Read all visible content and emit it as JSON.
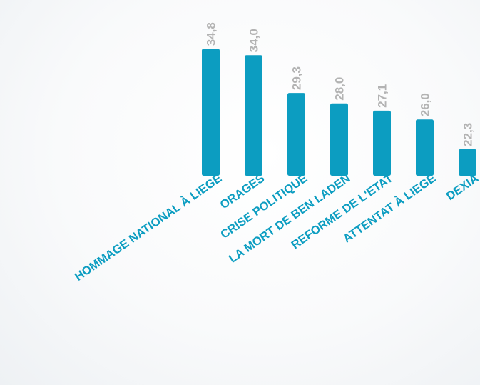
{
  "chart_data": {
    "type": "bar",
    "categories": [
      "HOMMAGE NATIONAL À LIEGE",
      "ORAGES",
      "CRISE POLITIQUE",
      "LA MORT DE BEN LADEN",
      "REFORME DE L'ETAT",
      "ATTENTAT À LIEGE",
      "DEXIA"
    ],
    "values": [
      34.8,
      34.0,
      29.3,
      28.0,
      27.1,
      26.0,
      22.3
    ],
    "value_labels": [
      "34,8",
      "34,0",
      "29,3",
      "28,0",
      "27,1",
      "26,0",
      "22,3"
    ],
    "title": "",
    "xlabel": "",
    "ylabel": "",
    "ylim": [
      19,
      35
    ],
    "grid": false,
    "legend": "none",
    "colors": {
      "bar": "#0c9dc1",
      "value_label": "#b3b3b3",
      "category_label": "#0c9dc1"
    }
  }
}
